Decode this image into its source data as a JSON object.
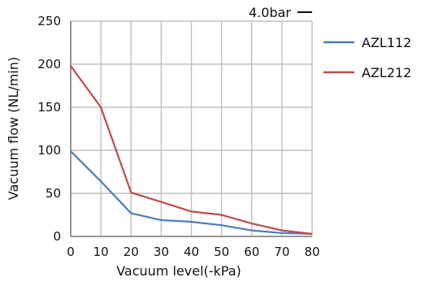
{
  "chart_data": {
    "type": "line",
    "title": "",
    "annotation": "4.0bar",
    "xlabel": "Vacuum level(-kPa)",
    "ylabel": "Vacuum flow (NL/min)",
    "x": [
      0,
      10,
      20,
      30,
      40,
      50,
      60,
      70,
      80
    ],
    "xlim": [
      0,
      80
    ],
    "ylim": [
      0,
      250
    ],
    "xticks": [
      0,
      10,
      20,
      30,
      40,
      50,
      60,
      70,
      80
    ],
    "yticks": [
      0,
      50,
      100,
      150,
      200,
      250
    ],
    "grid": true,
    "legend_position": "right",
    "series": [
      {
        "name": "AZL112",
        "color": "#4a7ebb",
        "values": [
          99,
          64,
          27,
          19,
          17,
          13,
          7,
          4,
          3
        ]
      },
      {
        "name": "AZL212",
        "color": "#be4b48",
        "values": [
          198,
          150,
          51,
          40,
          29,
          25,
          15,
          7,
          3
        ]
      }
    ]
  }
}
